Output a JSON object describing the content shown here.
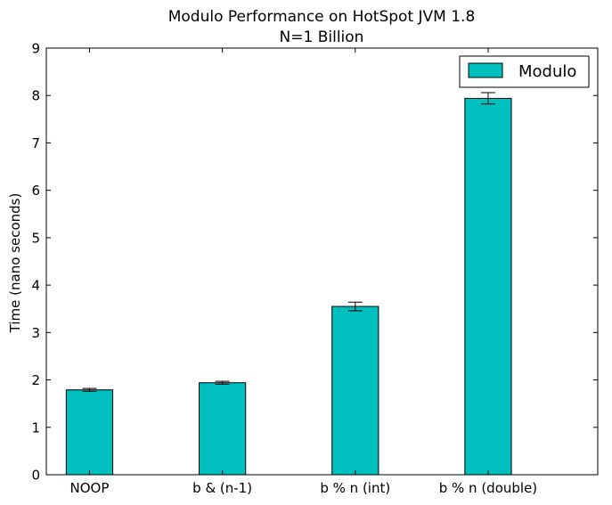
{
  "chart_data": {
    "type": "bar",
    "title": [
      "Modulo Performance on HotSpot JVM 1.8",
      "N=1 Billion"
    ],
    "xlabel": "",
    "ylabel": "Time (nano seconds)",
    "categories": [
      "NOOP",
      "b & (n-1)",
      "b % n (int)",
      "b % n (double)"
    ],
    "series": [
      {
        "name": "Modulo",
        "values": [
          1.79,
          1.94,
          3.55,
          7.94
        ],
        "errors": [
          0.03,
          0.03,
          0.09,
          0.12
        ]
      }
    ],
    "ylim": [
      0,
      9
    ],
    "yticks": [
      0,
      1,
      2,
      3,
      4,
      5,
      6,
      7,
      8,
      9
    ],
    "grid": false,
    "legend": "top-right",
    "colors": {
      "bar": "#00bfbf",
      "edge": "#000000"
    }
  }
}
